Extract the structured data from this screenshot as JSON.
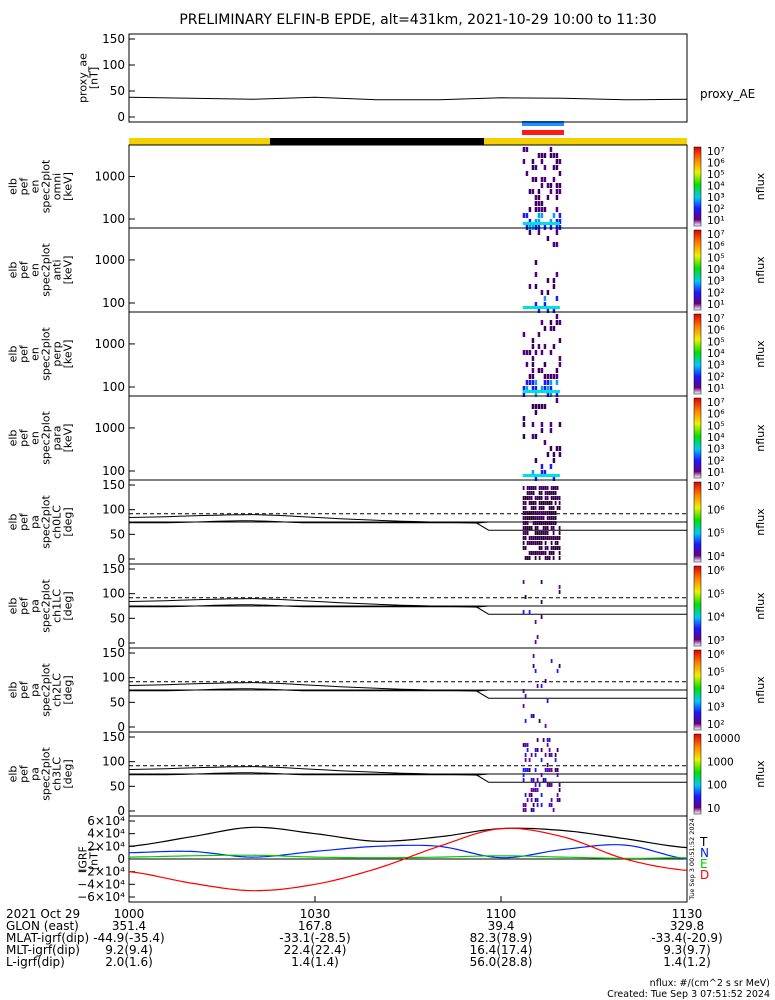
{
  "title": "PRELIMINARY ELFIN-B EPDE, alt=431km, 2021-10-29 10:00 to 11:30",
  "footer": {
    "units": "nflux: #/(cm^2 s sr MeV)",
    "created": "Created: Tue Sep  3 07:51:52 2024"
  },
  "colors": {
    "bar_yellow": "#f5d000",
    "bar_black": "#000000",
    "bar_blue": "#1e90ff",
    "bar_red": "#ff1a1a",
    "bx": "#0020ff",
    "by": "#00cc00",
    "bz": "#ff0000",
    "bt": "#000000"
  },
  "chart_data": [
    {
      "type": "line",
      "id": "ae",
      "ylabels": [
        "proxy_ae",
        "[nT]"
      ],
      "ylim": [
        0,
        150
      ],
      "yticks": [
        "150",
        "100",
        "50",
        "0"
      ],
      "legend": "proxy_AE",
      "x": [
        "10:00",
        "10:10",
        "10:20",
        "10:30",
        "10:40",
        "10:50",
        "11:00",
        "11:10",
        "11:20",
        "11:30"
      ],
      "values": [
        38,
        36,
        34,
        38,
        33,
        33,
        37,
        36,
        33,
        34
      ]
    },
    {
      "type": "heatmap",
      "id": "omni",
      "ylabels": [
        "elb",
        "pef",
        "en",
        "spec2plot",
        "omni",
        "[keV]"
      ],
      "yticks": [
        "1000",
        "100"
      ],
      "cbar_ticks": [
        "10⁷",
        "10⁶",
        "10⁵",
        "10⁴",
        "10³",
        "10²",
        "10¹"
      ],
      "cbar_label": "nflux"
    },
    {
      "type": "heatmap",
      "id": "anti",
      "ylabels": [
        "elb",
        "pef",
        "en",
        "spec2plot",
        "anti",
        "[keV]"
      ],
      "yticks": [
        "1000",
        "100"
      ],
      "cbar_ticks": [
        "10⁷",
        "10⁶",
        "10⁵",
        "10⁴",
        "10³",
        "10²",
        "10¹"
      ],
      "cbar_label": "nflux"
    },
    {
      "type": "heatmap",
      "id": "perp",
      "ylabels": [
        "elb",
        "pef",
        "en",
        "spec2plot",
        "perp",
        "[keV]"
      ],
      "yticks": [
        "1000",
        "100"
      ],
      "cbar_ticks": [
        "10⁷",
        "10⁶",
        "10⁵",
        "10⁴",
        "10³",
        "10²",
        "10¹"
      ],
      "cbar_label": "nflux"
    },
    {
      "type": "heatmap",
      "id": "para",
      "ylabels": [
        "elb",
        "pef",
        "en",
        "spec2plot",
        "para",
        "[keV]"
      ],
      "yticks": [
        "1000",
        "100"
      ],
      "cbar_ticks": [
        "10⁷",
        "10⁶",
        "10⁵",
        "10⁴",
        "10³",
        "10²",
        "10¹"
      ],
      "cbar_label": "nflux"
    },
    {
      "type": "heatmap",
      "id": "ch0",
      "ylabels": [
        "elb",
        "pef",
        "pa",
        "spec2plot",
        "ch0LC",
        "[deg]"
      ],
      "yticks": [
        "150",
        "100",
        "50",
        "0"
      ],
      "cbar_ticks": [
        "10⁷",
        "10⁶",
        "10⁵",
        "10⁴"
      ],
      "cbar_label": "nflux"
    },
    {
      "type": "heatmap",
      "id": "ch1",
      "ylabels": [
        "elb",
        "pef",
        "pa",
        "spec2plot",
        "ch1LC",
        "[deg]"
      ],
      "yticks": [
        "150",
        "100",
        "50",
        "0"
      ],
      "cbar_ticks": [
        "10⁶",
        "10⁵",
        "10⁴",
        "10³"
      ],
      "cbar_label": "nflux"
    },
    {
      "type": "heatmap",
      "id": "ch2",
      "ylabels": [
        "elb",
        "pef",
        "pa",
        "spec2plot",
        "ch2LC",
        "[deg]"
      ],
      "yticks": [
        "150",
        "100",
        "50",
        "0"
      ],
      "cbar_ticks": [
        "10⁶",
        "10⁵",
        "10⁴",
        "10³",
        "10²"
      ],
      "cbar_label": "nflux"
    },
    {
      "type": "heatmap",
      "id": "ch3",
      "ylabels": [
        "elb",
        "pef",
        "pa",
        "spec2plot",
        "ch3LC",
        "[deg]"
      ],
      "yticks": [
        "150",
        "100",
        "50",
        "0"
      ],
      "cbar_ticks": [
        "10000",
        "1000",
        "100",
        "10"
      ],
      "cbar_label": "nflux"
    },
    {
      "type": "line",
      "id": "igrf",
      "ylabels": [
        "IGRF",
        "[nT]"
      ],
      "yticks": [
        "6×10⁴",
        "4×10⁴",
        "2×10⁴",
        "0",
        "−2×10⁴",
        "−4×10⁴",
        "−6×10⁴"
      ],
      "ylim": [
        -60000,
        60000
      ],
      "legend": [
        "T",
        "N",
        "E",
        "D"
      ],
      "side_note": "Tue Sep  3 00:51:52 2024",
      "x_minutes": [
        0,
        10,
        20,
        30,
        40,
        50,
        60,
        70,
        80,
        90
      ],
      "series": [
        {
          "name": "T",
          "values": [
            20000,
            35000,
            50000,
            40000,
            28000,
            35000,
            48000,
            45000,
            32000,
            18000
          ]
        },
        {
          "name": "N",
          "values": [
            10000,
            12000,
            3000,
            12000,
            20000,
            20000,
            2000,
            15000,
            22000,
            0
          ]
        },
        {
          "name": "E",
          "values": [
            3000,
            5000,
            6000,
            3000,
            2000,
            3000,
            5000,
            3000,
            1000,
            2000
          ]
        },
        {
          "name": "D",
          "values": [
            -20000,
            -38000,
            -50000,
            -40000,
            -15000,
            20000,
            48000,
            35000,
            0,
            -18000
          ]
        }
      ]
    }
  ],
  "xaxis": {
    "rows": [
      {
        "label": "2021 Oct 29",
        "values": [
          "1000",
          "1030",
          "1100",
          "1130"
        ]
      },
      {
        "label": "GLON (east)",
        "values": [
          "351.4",
          "167.8",
          "39.4",
          "329.8"
        ]
      },
      {
        "label": "MLAT-igrf(dip)",
        "values": [
          "-44.9(-35.4)",
          "-33.1(-28.5)",
          "82.3(78.9)",
          "-33.4(-20.9)"
        ]
      },
      {
        "label": "MLT-igrf(dip)",
        "values": [
          "9.2(9.4)",
          "22.4(22.4)",
          "16.4(17.4)",
          "9.3(9.7)"
        ]
      },
      {
        "label": "L-igrf(dip)",
        "values": [
          "2.0(1.6)",
          "1.4(1.4)",
          "56.0(28.8)",
          "1.4(1.2)"
        ]
      }
    ]
  }
}
